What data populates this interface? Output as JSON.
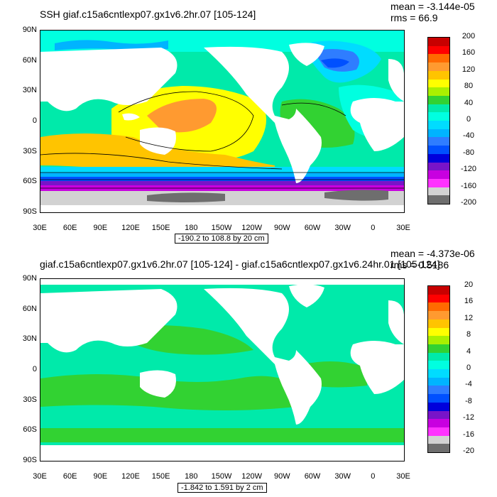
{
  "panel1": {
    "title": "SSH giaf.c15a6cntlexp07.gx1v6.2hr.07 [105-124]",
    "mean_label": "mean = -3.144e-05",
    "rms_label": "rms = 66.9",
    "range_label": "-190.2 to 108.8 by 20 cm",
    "colorbar_labels": [
      "200",
      "160",
      "120",
      "80",
      "40",
      "0",
      "-40",
      "-80",
      "-120",
      "-160",
      "-200"
    ]
  },
  "panel2": {
    "title": "giaf.c15a6cntlexp07.gx1v6.2hr.07 [105-124] - giaf.c15a6cntlexp07.gx1v6.24hr.01 [105-124]",
    "mean_label": "mean = -4.373e-06",
    "rms_label": "rms = 0.5186",
    "range_label": "-1.842 to 1.591 by 2 cm",
    "colorbar_labels": [
      "20",
      "16",
      "12",
      "8",
      "4",
      "0",
      "-4",
      "-8",
      "-12",
      "-16",
      "-20"
    ]
  },
  "lat_labels": [
    "90N",
    "60N",
    "30N",
    "0",
    "30S",
    "60S",
    "90S"
  ],
  "lon_labels": [
    "30E",
    "60E",
    "90E",
    "120E",
    "150E",
    "180",
    "150W",
    "120W",
    "90W",
    "60W",
    "30W",
    "0",
    "30E"
  ],
  "colorbar_colors": [
    "#c80000",
    "#ff0000",
    "#ff6a00",
    "#ff9a30",
    "#ffc400",
    "#ffff00",
    "#aaf000",
    "#32d232",
    "#00eaaa",
    "#00ffe0",
    "#00dcff",
    "#00b4ff",
    "#2f7dff",
    "#0050ff",
    "#0000dc",
    "#7814c8",
    "#c800e0",
    "#ff32ff",
    "#d2d2d2",
    "#6e6e6e"
  ],
  "land_color": "#ffffff"
}
